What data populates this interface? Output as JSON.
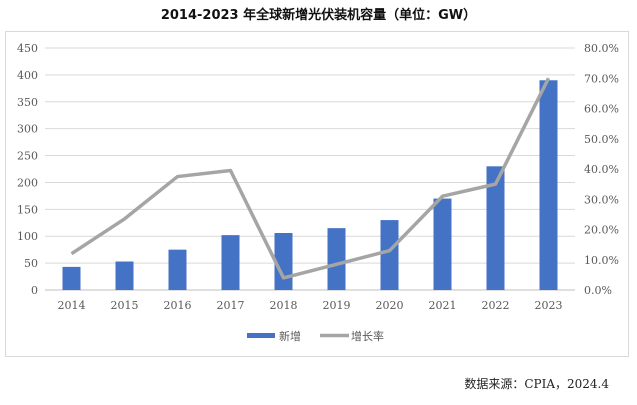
{
  "chart_data": {
    "type": "bar+line",
    "title": "2014-2023 年全球新增光伏装机容量（单位：GW）",
    "categories": [
      "2014",
      "2015",
      "2016",
      "2017",
      "2018",
      "2019",
      "2020",
      "2021",
      "2022",
      "2023"
    ],
    "series": [
      {
        "name": "新增",
        "type": "bar",
        "axis": "left",
        "color": "#4472C4",
        "values": [
          43,
          53,
          75,
          102,
          106,
          115,
          130,
          170,
          230,
          390
        ]
      },
      {
        "name": "增长率",
        "type": "line",
        "axis": "right",
        "color": "#A5A5A5",
        "values": [
          12.0,
          23.5,
          37.5,
          39.5,
          4.0,
          8.5,
          13.0,
          31.0,
          35.0,
          70.0
        ]
      }
    ],
    "left_axis": {
      "min": 0,
      "max": 450,
      "step": 50,
      "ticks": [
        "0",
        "50",
        "100",
        "150",
        "200",
        "250",
        "300",
        "350",
        "400",
        "450"
      ]
    },
    "right_axis": {
      "min": 0,
      "max": 80,
      "step": 10,
      "ticks": [
        "0.0%",
        "10.0%",
        "20.0%",
        "30.0%",
        "40.0%",
        "50.0%",
        "60.0%",
        "70.0%",
        "80.0%"
      ]
    },
    "grid": true,
    "legend": "bottom"
  },
  "source": "数据来源：CPIA，2024.4"
}
